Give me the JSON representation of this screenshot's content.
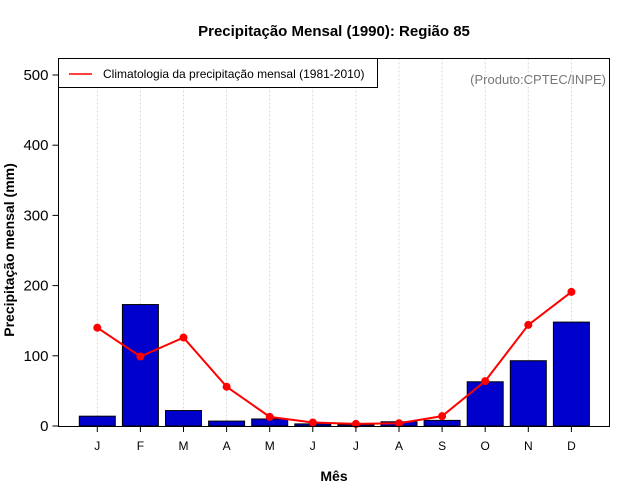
{
  "chart_data": {
    "type": "bar",
    "title": "Precipitação Mensal (1990): Região 85",
    "xlabel": "Mês",
    "ylabel": "Precipitação mensal (mm)",
    "categories": [
      "J",
      "F",
      "M",
      "A",
      "M",
      "J",
      "J",
      "A",
      "S",
      "O",
      "N",
      "D"
    ],
    "ylim": [
      0,
      520
    ],
    "yticks": [
      0,
      100,
      200,
      300,
      400,
      500
    ],
    "grid": "vertical-dotted",
    "series": [
      {
        "name": "Precipitação mensal (1990)",
        "type": "bar",
        "color": "#0000CC",
        "values": [
          14,
          173,
          22,
          7,
          10,
          3,
          2,
          6,
          8,
          63,
          93,
          148
        ]
      },
      {
        "name": "Climatologia da precipitação mensal (1981-2010)",
        "type": "line",
        "color": "#FF0000",
        "values": [
          140,
          99,
          126,
          56,
          13,
          5,
          3,
          4,
          14,
          64,
          144,
          191
        ]
      }
    ],
    "legend": {
      "placement": "top-left",
      "entries": [
        "Climatologia da precipitação mensal (1981-2010)"
      ]
    },
    "annotation": "(Produto:CPTEC/INPE)"
  }
}
